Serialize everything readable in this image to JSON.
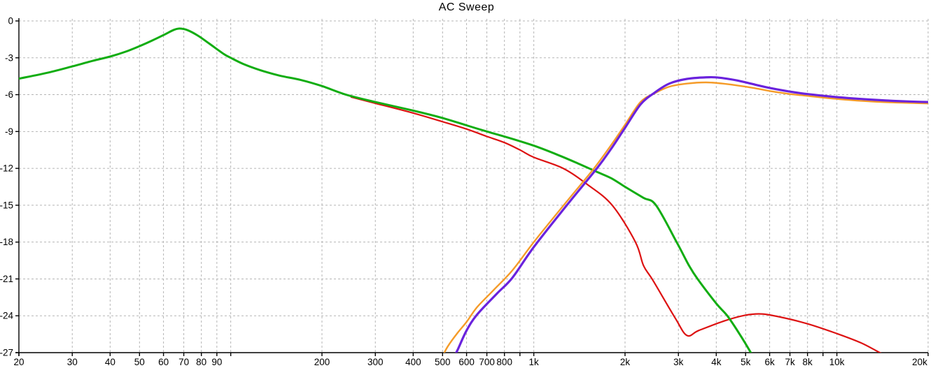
{
  "chart_data": {
    "type": "line",
    "title": "AC Sweep",
    "legend": "none",
    "grid": "dashed",
    "grid_color": "#b5b5b5",
    "axis_color": "#000000",
    "x_axis": {
      "scale": "log",
      "unit": "Hz",
      "min": 20,
      "max": 20000,
      "ticks": [
        {
          "v": 20,
          "label": "20"
        },
        {
          "v": 30,
          "label": "30"
        },
        {
          "v": 40,
          "label": "40"
        },
        {
          "v": 50,
          "label": "50"
        },
        {
          "v": 60,
          "label": "60"
        },
        {
          "v": 70,
          "label": "70"
        },
        {
          "v": 80,
          "label": "80"
        },
        {
          "v": 90,
          "label": "90"
        },
        {
          "v": 100,
          "label": ""
        },
        {
          "v": 200,
          "label": "200"
        },
        {
          "v": 300,
          "label": "300"
        },
        {
          "v": 400,
          "label": "400"
        },
        {
          "v": 500,
          "label": "500"
        },
        {
          "v": 600,
          "label": "600"
        },
        {
          "v": 700,
          "label": "700"
        },
        {
          "v": 800,
          "label": "800"
        },
        {
          "v": 900,
          "label": ""
        },
        {
          "v": 1000,
          "label": "1k"
        },
        {
          "v": 2000,
          "label": "2k"
        },
        {
          "v": 3000,
          "label": "3k"
        },
        {
          "v": 4000,
          "label": "4k"
        },
        {
          "v": 5000,
          "label": "5k"
        },
        {
          "v": 6000,
          "label": "6k"
        },
        {
          "v": 7000,
          "label": "7k"
        },
        {
          "v": 8000,
          "label": "8k"
        },
        {
          "v": 9000,
          "label": ""
        },
        {
          "v": 10000,
          "label": "10k"
        },
        {
          "v": 20000,
          "label": "20k"
        }
      ]
    },
    "y_axis": {
      "scale": "linear",
      "unit": "dB",
      "min": -27,
      "max": 0,
      "step": 3,
      "ticks": [
        {
          "v": 0,
          "label": "0"
        },
        {
          "v": -3,
          "label": "-3"
        },
        {
          "v": -6,
          "label": "-6"
        },
        {
          "v": -9,
          "label": "-9"
        },
        {
          "v": -12,
          "label": "-12"
        },
        {
          "v": -15,
          "label": "-15"
        },
        {
          "v": -18,
          "label": "-18"
        },
        {
          "v": -21,
          "label": "-21"
        },
        {
          "v": -24,
          "label": "-24"
        },
        {
          "v": -27,
          "label": "-27"
        }
      ]
    },
    "series": [
      {
        "name": "red-trace",
        "color": "#dd1212",
        "width": 2.2,
        "points": [
          [
            250,
            -6.2
          ],
          [
            300,
            -6.7
          ],
          [
            400,
            -7.5
          ],
          [
            500,
            -8.2
          ],
          [
            600,
            -8.8
          ],
          [
            700,
            -9.4
          ],
          [
            800,
            -9.9
          ],
          [
            900,
            -10.5
          ],
          [
            1000,
            -11.1
          ],
          [
            1250,
            -12.0
          ],
          [
            1500,
            -13.3
          ],
          [
            1815,
            -15.0
          ],
          [
            2165,
            -18.0
          ],
          [
            2300,
            -19.9
          ],
          [
            2470,
            -21.1
          ],
          [
            2930,
            -24.2
          ],
          [
            3200,
            -25.6
          ],
          [
            3500,
            -25.2
          ],
          [
            4270,
            -24.4
          ],
          [
            5000,
            -23.95
          ],
          [
            5650,
            -23.85
          ],
          [
            6500,
            -24.1
          ],
          [
            8000,
            -24.65
          ],
          [
            10000,
            -25.45
          ],
          [
            12000,
            -26.2
          ],
          [
            14000,
            -27.05
          ],
          [
            16000,
            -27.7
          ],
          [
            20000,
            -28.6
          ]
        ]
      },
      {
        "name": "green-trace",
        "color": "#12ad12",
        "width": 3,
        "points": [
          [
            20,
            -4.7
          ],
          [
            25,
            -4.2
          ],
          [
            30,
            -3.7
          ],
          [
            35,
            -3.25
          ],
          [
            40,
            -2.9
          ],
          [
            45,
            -2.5
          ],
          [
            50,
            -2.05
          ],
          [
            55,
            -1.6
          ],
          [
            60,
            -1.15
          ],
          [
            65,
            -0.72
          ],
          [
            68,
            -0.62
          ],
          [
            72,
            -0.75
          ],
          [
            78,
            -1.2
          ],
          [
            85,
            -1.85
          ],
          [
            95,
            -2.7
          ],
          [
            100,
            -3.0
          ],
          [
            110,
            -3.5
          ],
          [
            125,
            -4.0
          ],
          [
            145,
            -4.45
          ],
          [
            170,
            -4.8
          ],
          [
            200,
            -5.3
          ],
          [
            240,
            -6.0
          ],
          [
            300,
            -6.6
          ],
          [
            400,
            -7.3
          ],
          [
            500,
            -7.9
          ],
          [
            600,
            -8.5
          ],
          [
            700,
            -9.0
          ],
          [
            850,
            -9.6
          ],
          [
            1000,
            -10.15
          ],
          [
            1200,
            -10.9
          ],
          [
            1400,
            -11.6
          ],
          [
            1620,
            -12.3
          ],
          [
            1800,
            -12.8
          ],
          [
            2000,
            -13.5
          ],
          [
            2300,
            -14.4
          ],
          [
            2530,
            -15.0
          ],
          [
            2960,
            -18.0
          ],
          [
            3250,
            -19.9
          ],
          [
            3470,
            -21.0
          ],
          [
            4000,
            -23.0
          ],
          [
            4350,
            -24.0
          ],
          [
            4750,
            -25.4
          ],
          [
            5200,
            -27.0
          ],
          [
            5400,
            -27.8
          ]
        ]
      },
      {
        "name": "orange-trace",
        "color": "#f59b28",
        "width": 2.4,
        "points": [
          [
            495,
            -27.5
          ],
          [
            520,
            -26.5
          ],
          [
            560,
            -25.4
          ],
          [
            600,
            -24.5
          ],
          [
            650,
            -23.3
          ],
          [
            737,
            -21.9
          ],
          [
            850,
            -20.3
          ],
          [
            1000,
            -18.0
          ],
          [
            1255,
            -15.0
          ],
          [
            1580,
            -12.0
          ],
          [
            1800,
            -10.1
          ],
          [
            2000,
            -8.45
          ],
          [
            2250,
            -6.6
          ],
          [
            2500,
            -5.9
          ],
          [
            2800,
            -5.35
          ],
          [
            3200,
            -5.1
          ],
          [
            3700,
            -5.0
          ],
          [
            4200,
            -5.1
          ],
          [
            4700,
            -5.25
          ],
          [
            5300,
            -5.45
          ],
          [
            6000,
            -5.7
          ],
          [
            7000,
            -5.95
          ],
          [
            8000,
            -6.1
          ],
          [
            10000,
            -6.35
          ],
          [
            12000,
            -6.5
          ],
          [
            14000,
            -6.6
          ],
          [
            17000,
            -6.67
          ],
          [
            20000,
            -6.72
          ]
        ]
      },
      {
        "name": "purple-trace",
        "color": "#6a22dd",
        "width": 3.2,
        "points": [
          [
            540,
            -27.5
          ],
          [
            560,
            -26.8
          ],
          [
            600,
            -25.2
          ],
          [
            650,
            -23.9
          ],
          [
            755,
            -22.2
          ],
          [
            850,
            -20.9
          ],
          [
            1000,
            -18.4
          ],
          [
            1285,
            -15.0
          ],
          [
            1615,
            -12.0
          ],
          [
            1800,
            -10.4
          ],
          [
            2000,
            -8.7
          ],
          [
            2250,
            -6.8
          ],
          [
            2500,
            -5.85
          ],
          [
            2800,
            -5.1
          ],
          [
            3200,
            -4.72
          ],
          [
            3800,
            -4.58
          ],
          [
            4200,
            -4.65
          ],
          [
            4700,
            -4.85
          ],
          [
            5300,
            -5.15
          ],
          [
            6000,
            -5.45
          ],
          [
            7000,
            -5.75
          ],
          [
            8000,
            -5.95
          ],
          [
            10000,
            -6.2
          ],
          [
            12000,
            -6.35
          ],
          [
            14000,
            -6.45
          ],
          [
            17000,
            -6.55
          ],
          [
            20000,
            -6.6
          ]
        ]
      }
    ]
  }
}
